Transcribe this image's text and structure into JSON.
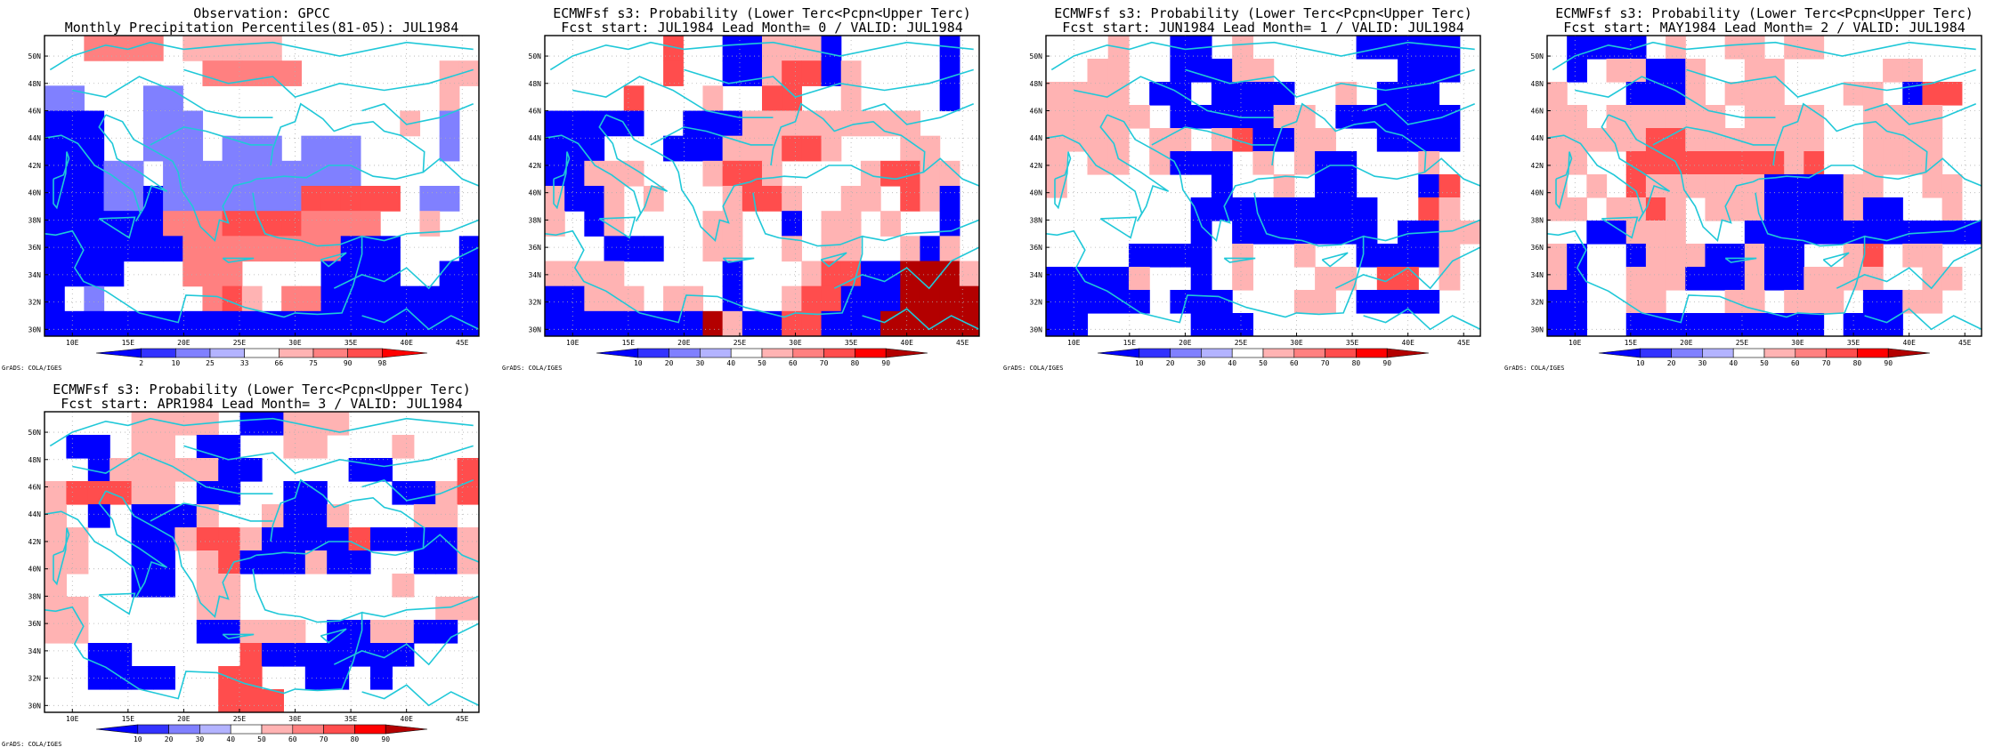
{
  "lat_labels": [
    "30N",
    "32N",
    "34N",
    "36N",
    "38N",
    "40N",
    "42N",
    "44N",
    "46N",
    "48N",
    "50N"
  ],
  "lon_labels": [
    "10E",
    "15E",
    "20E",
    "25E",
    "30E",
    "35E",
    "40E",
    "45E"
  ],
  "credit": "GrADS: COLA/IGES",
  "colors": {
    "b0": "#0000ff",
    "b1": "#3333ff",
    "b2": "#8080ff",
    "b3": "#b3b3ff",
    "r0": "#ffb3b3",
    "r1": "#ff8080",
    "r2": "#ff4d4d",
    "r3": "#ff0000",
    "r4": "#b30000",
    "coast": "#20c8d8",
    "frame": "#000000",
    "grid": "#b0b0b0"
  },
  "panels": [
    {
      "title1": "Observation: GPCC",
      "title2": "Monthly Precipitation Percentiles(81-05): JUL1984",
      "colorbar_labels": [
        "2",
        "10",
        "25",
        "33",
        "66",
        "75",
        "90",
        "98"
      ],
      "colorbar_colors": [
        "b0",
        "b1",
        "b2",
        "b3",
        "w",
        "r0",
        "r1",
        "r2",
        "r3"
      ],
      "grid": [
        "..rrrr.ppppp.........",
        "........rrrrr.......pp",
        "LL...LL.............p.",
        "BBB..LLL..........p.L.",
        "BBB..LLL.LLL.LLL....L.",
        "BBBLL.LLLLLLLLLL......",
        "BBBLLBLLLLLLLRRRRR.LL.",
        "BBBBBBrrrRRRRrrrr..p..",
        "BBBBBBBrrrrrrrrBBB...B",
        "BBBB...rrr....BBBB..BB",
        "B.L.....rRp.rrBBBBBBBB",
        "BBBBBBBBBBBBBBBBBBBBBB"
      ]
    },
    {
      "title1": "ECMWFsf s3: Probability (Lower Terc<Pcpn<Upper Terc)",
      "title2": "Fcst start: JUL1984  Lead Month= 0 / VALID: JUL1984",
      "colorbar_labels": [
        "10",
        "20",
        "30",
        "40",
        "50",
        "60",
        "70",
        "80",
        "90"
      ],
      "colorbar_colors": [
        "b0",
        "b1",
        "b2",
        "b3",
        "w",
        "r0",
        "r1",
        "r2",
        "r3",
        "r4"
      ],
      "grid": [
        "......R..BBpppB.....B",
        "......R..BBpRRBp....B",
        "....R...p..RR..p....B",
        "BBBBB..BBBppppppppp..",
        "BBB...BBBpppRRp...pp.",
        "BBppp...pRRp....pRRpp",
        "pBBp.p...pRRp..pp.RpB",
        "p.Bp....pp..B.pp.p..B",
        "...BBB..pp..p.pp..pBp",
        "pppp.....B...pRRBBDDDp",
        "BBppp.pp.B..pRRBBBDDDD",
        "BBBBBBBBDpBBRRBBBDDDDD"
      ]
    },
    {
      "title1": "ECMWFsf s3: Probability (Lower Terc<Pcpn<Upper Terc)",
      "title2": "Fcst start: JUN1984  Lead Month= 1 / VALID: JUL1984",
      "colorbar_labels": [
        "10",
        "20",
        "30",
        "40",
        "50",
        "60",
        "70",
        "80",
        "90"
      ],
      "colorbar_colors": [
        "b0",
        "b1",
        "b2",
        "b3",
        "w",
        "r0",
        "r1",
        "r2",
        "r3",
        "r4"
      ],
      "grid": [
        "...p..BB.p.....BBBBB",
        "..pp..BBBpp......BBB",
        "pppp.BB.BBBB..p.BBB.",
        "ppppp.BBBBBpp.BBBBBB",
        "pppp.pp.pRBBpp..BBBB",
        "p.pp.pBBB.p.pBB...p.",
        "p.......B..p.BB...BR",
        ".......BBBBBBBBB..Rp",
        ".......B.BBBBBBB.BBpp",
        "....BBBB.p..p..BBBBp",
        "BBBBp..B.p...pp.RR.p",
        "BBBBB.BBB...pp.BBBB.",
        "BB.....BBB........."
      ]
    },
    {
      "title1": "ECMWFsf s3: Probability (Lower Terc<Pcpn<Upper Terc)",
      "title2": "Fcst start: MAY1984  Lead Month= 2 / VALID: JUL1984",
      "colorbar_labels": [
        "10",
        "20",
        "30",
        "40",
        "50",
        "60",
        "70",
        "80",
        "90"
      ],
      "colorbar_colors": [
        "b0",
        "b1",
        "b2",
        "b3",
        "w",
        "r0",
        "r1",
        "r2",
        "r3",
        "r4"
      ],
      "grid": [
        ".BBBB.p..pp.pp.......",
        ".B.ppBBp..pp.....pp...",
        "p...BBBp.ppp...pp.BRR",
        "pp.pppppp.pppp..pppp.",
        "pppppRRppppppp..pppp.",
        "pp..RRRRRRRRpR..pppp.",
        "p.p.RppppppBBBBpp..pp.",
        "pp.ppRp.pppBBBBpBB..p",
        "..BBppp...BBBBBBBBBBBB",
        "pB..BpppBBpBB..pR.pp.",
        "pB..pppBBBpBBpppp..pp",
        "BB..pp...pp.ppp.BBpp.",
        "BB..BBBBBBBBBB.BBB..."
      ]
    },
    {
      "title1": "ECMWFsf s3: Probability (Lower Terc<Pcpn<Upper Terc)",
      "title2": "Fcst start: APR1984  Lead Month= 3 / VALID: JUL1984",
      "colorbar_labels": [
        "10",
        "20",
        "30",
        "40",
        "50",
        "60",
        "70",
        "80",
        "90"
      ],
      "colorbar_colors": [
        "b0",
        "b1",
        "b2",
        "b3",
        "w",
        "r0",
        "r1",
        "r2",
        "r3",
        "r4"
      ],
      "grid": [
        "....pppp.BBppp......",
        ".BB.pp.BB..pp...p...",
        "..BpppppBB....BB...R",
        "pRRRpp.BB..BB...BBpR",
        "p.B.BBBp..pBBp...pp",
        "pp..BBpRRpBBBBRBBBBp",
        "pp..BB.pRBBBpBB..BBp",
        "p...BB.pp.......p...",
        "pp.....pp.........pp",
        "pp.....BBppp.BBppBB.",
        "..BB.....RBBBBBBB...",
        "..BBBB..RR..BB.B....",
        "........RRR........."
      ]
    }
  ]
}
